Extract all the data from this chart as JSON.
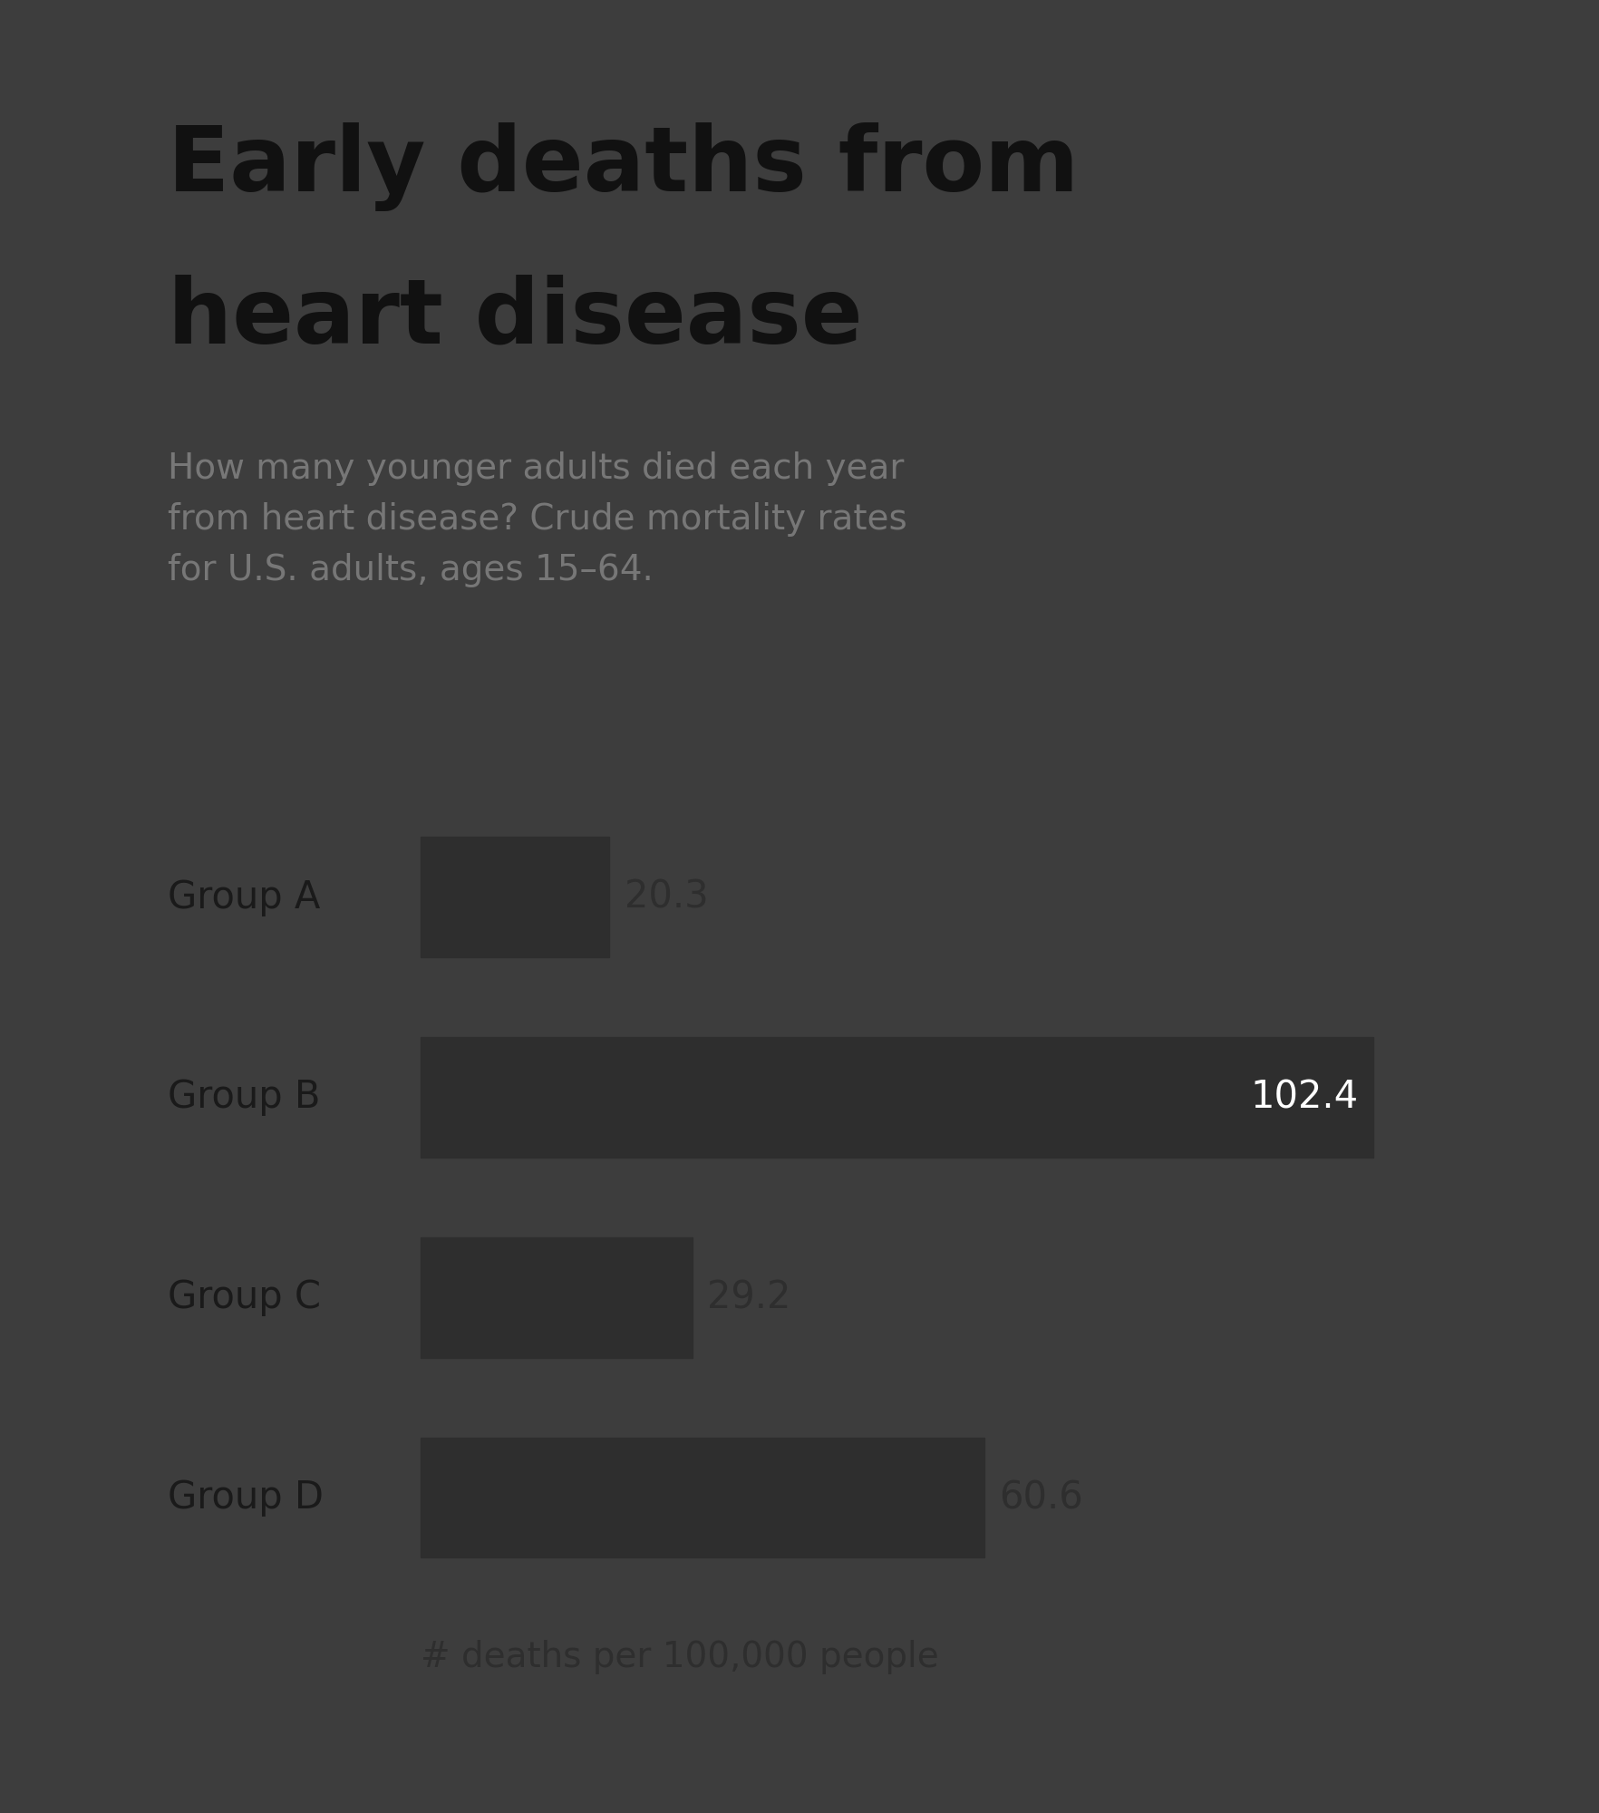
{
  "title_line1": "Early deaths from",
  "title_line2": "heart disease",
  "subtitle": "How many younger adults died each year\nfrom heart disease? Crude mortality rates\nfor U.S. adults, ages 15–64.",
  "xlabel": "# deaths per 100,000 people",
  "categories": [
    "Group A",
    "Group B",
    "Group C",
    "Group D"
  ],
  "values": [
    20.3,
    102.4,
    29.2,
    60.6
  ],
  "bar_color": "#2e2e2e",
  "label_color_inside": "#ffffff",
  "label_color_outside": "#2e2e2e",
  "background_color": "#eeeeee",
  "outer_background": "#3d3d3d",
  "title_color": "#111111",
  "subtitle_color": "#777777",
  "xlabel_color": "#2e2e2e",
  "category_color": "#1a1a1a",
  "title_fontsize": 72,
  "subtitle_fontsize": 28,
  "category_fontsize": 30,
  "value_fontsize": 30,
  "xlabel_fontsize": 28,
  "bar_height": 0.6,
  "xlim": [
    0,
    115
  ]
}
